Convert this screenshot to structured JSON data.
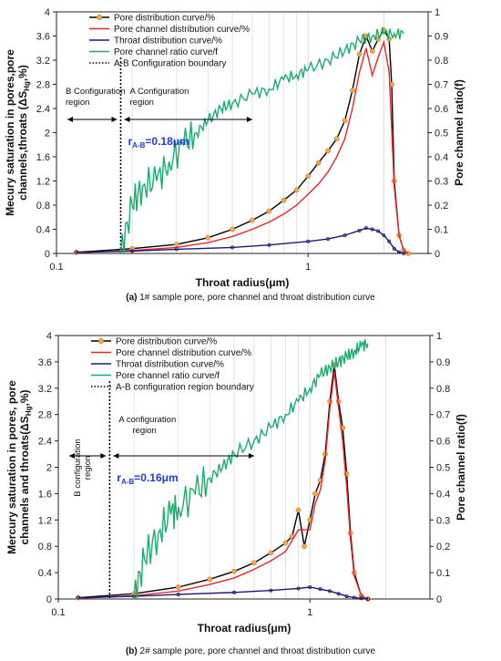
{
  "chart_data": [
    {
      "type": "line",
      "caption_label": "(a)",
      "caption": "1# sample pore, pore channel and throat distribution curve",
      "xlabel": "Throat radius(μm)",
      "ylabel_lines": [
        "Mecury saturation in pores,pore",
        "channels,throats (ΔS",
        "Hg",
        ",%)"
      ],
      "y2label": "Pore channel ratio(f)",
      "xscale": "log",
      "xlim": [
        0.1,
        3.0
      ],
      "ylim": [
        0,
        4
      ],
      "y2lim": [
        0,
        1
      ],
      "x_ticks": [
        "0.1",
        "1"
      ],
      "y_ticks": [
        "0",
        "0.4",
        "0.8",
        "1.2",
        "1.6",
        "2",
        "2.4",
        "2.8",
        "3.2",
        "3.6",
        "4"
      ],
      "y2_ticks": [
        "0",
        "0.1",
        "0.2",
        "0.3",
        "0.4",
        "0.5",
        "0.6",
        "0.7",
        "0.8",
        "0.9",
        "1"
      ],
      "boundary_x": 0.18,
      "r_label_main": "r",
      "r_label_sub": "A-B",
      "r_label_value": "=0.18μm",
      "region_b": [
        "B Configuration",
        "region"
      ],
      "region_a": [
        "A Configuration",
        "region"
      ],
      "legend": [
        {
          "label": "Pore distribution curve/%",
          "color": "#000000",
          "marker": "orange-dot"
        },
        {
          "label": "Pore channel distribution curve/%",
          "color": "#e8262a",
          "marker": "none"
        },
        {
          "label": "Throat distribution curve/%",
          "color": "#1a1a7a",
          "marker": "none"
        },
        {
          "label": "Pore channel ratio curve/f",
          "color": "#1aae6a",
          "marker": "none"
        },
        {
          "label": "A-B Configuration boundary",
          "color": "#000000",
          "marker": "dotted"
        }
      ],
      "series": [
        {
          "name": "Pore distribution curve/%",
          "axis": "left",
          "color": "#000000",
          "marker_color": "#f5a742",
          "x": [
            0.12,
            0.2,
            0.3,
            0.4,
            0.5,
            0.6,
            0.7,
            0.8,
            0.9,
            1.0,
            1.1,
            1.2,
            1.3,
            1.4,
            1.5,
            1.6,
            1.7,
            1.8,
            1.9,
            2.0,
            2.1,
            2.15,
            2.2,
            2.3,
            2.4,
            2.5
          ],
          "y": [
            0.02,
            0.08,
            0.15,
            0.26,
            0.4,
            0.55,
            0.7,
            0.88,
            1.05,
            1.28,
            1.5,
            1.7,
            1.9,
            2.2,
            2.7,
            3.3,
            3.6,
            3.35,
            3.55,
            3.7,
            3.55,
            2.8,
            1.2,
            0.3,
            0.05,
            0.0
          ]
        },
        {
          "name": "Pore channel distribution curve/%",
          "axis": "left",
          "color": "#e8262a",
          "x": [
            0.12,
            0.2,
            0.3,
            0.4,
            0.5,
            0.6,
            0.7,
            0.8,
            0.9,
            1.0,
            1.1,
            1.2,
            1.3,
            1.4,
            1.5,
            1.6,
            1.7,
            1.8,
            1.9,
            2.0,
            2.1,
            2.2,
            2.3,
            2.4,
            2.5
          ],
          "y": [
            0.01,
            0.05,
            0.1,
            0.18,
            0.28,
            0.4,
            0.52,
            0.65,
            0.8,
            0.98,
            1.15,
            1.35,
            1.6,
            1.9,
            2.4,
            3.0,
            3.4,
            2.95,
            3.25,
            3.5,
            3.0,
            1.1,
            0.3,
            0.05,
            0.0
          ]
        },
        {
          "name": "Throat distribution curve/%",
          "axis": "left",
          "color": "#1a1a7a",
          "x": [
            0.12,
            0.2,
            0.3,
            0.5,
            0.7,
            1.0,
            1.2,
            1.4,
            1.6,
            1.7,
            1.8,
            1.9,
            2.0,
            2.1,
            2.2,
            2.3,
            2.4
          ],
          "y": [
            0.02,
            0.04,
            0.07,
            0.1,
            0.14,
            0.2,
            0.24,
            0.3,
            0.38,
            0.42,
            0.4,
            0.37,
            0.3,
            0.2,
            0.08,
            0.02,
            0.0
          ]
        },
        {
          "name": "Pore channel ratio curve/f",
          "axis": "right",
          "color": "#1aae6a",
          "x": [
            0.18,
            0.2,
            0.22,
            0.25,
            0.28,
            0.32,
            0.36,
            0.4,
            0.45,
            0.5,
            0.6,
            0.7,
            0.8,
            0.9,
            1.0,
            1.2,
            1.4,
            1.6,
            1.8,
            2.0,
            2.2,
            2.4
          ],
          "y": [
            0.0,
            0.2,
            0.28,
            0.3,
            0.38,
            0.45,
            0.5,
            0.55,
            0.6,
            0.62,
            0.66,
            0.68,
            0.72,
            0.74,
            0.76,
            0.8,
            0.84,
            0.88,
            0.9,
            0.91,
            0.91,
            0.91
          ]
        }
      ]
    },
    {
      "type": "line",
      "caption_label": "(b)",
      "caption": "2# sample pore, pore channel and throat distribution curve",
      "xlabel": "Throat radius(μm)",
      "ylabel_lines": [
        "Mercury saturation in pores, pore",
        "channels and throats(ΔS",
        "Hg",
        ",%)"
      ],
      "y2label": "Pore channel ratio(f)",
      "xscale": "log",
      "xlim": [
        0.1,
        3.0
      ],
      "ylim": [
        0,
        4
      ],
      "y2lim": [
        0,
        1
      ],
      "x_ticks": [
        "0.1",
        "1"
      ],
      "y_ticks": [
        "0",
        "0.4",
        "0.8",
        "1.2",
        "1.6",
        "2",
        "2.4",
        "2.8",
        "3.2",
        "3.6",
        "4"
      ],
      "y2_ticks": [
        "0",
        "0.1",
        "0.2",
        "0.3",
        "0.4",
        "0.5",
        "0.6",
        "0.7",
        "0.8",
        "0.9",
        "1"
      ],
      "boundary_x": 0.16,
      "r_label_main": "r",
      "r_label_sub": "A-B",
      "r_label_value": "=0.16μm",
      "region_b": [
        "B configuration",
        "region"
      ],
      "region_a": [
        "A configuration",
        "region"
      ],
      "legend": [
        {
          "label": "Pore distribution curve/%",
          "color": "#000000",
          "marker": "orange-dot"
        },
        {
          "label": "Pore channel distribution curve/%",
          "color": "#e8262a",
          "marker": "none"
        },
        {
          "label": "Throat distribution curve/%",
          "color": "#1a1a7a",
          "marker": "none"
        },
        {
          "label": "Pore channel ratio curve/f",
          "color": "#1aae6a",
          "marker": "none"
        },
        {
          "label": "A-B configuration region boundary",
          "color": "#000000",
          "marker": "dotted"
        }
      ],
      "series": [
        {
          "name": "Pore distribution curve/%",
          "axis": "left",
          "color": "#000000",
          "marker_color": "#f5a742",
          "x": [
            0.12,
            0.2,
            0.3,
            0.4,
            0.5,
            0.6,
            0.7,
            0.8,
            0.85,
            0.9,
            0.95,
            1.0,
            1.05,
            1.1,
            1.15,
            1.2,
            1.25,
            1.3,
            1.35,
            1.4,
            1.45,
            1.5,
            1.6,
            1.7
          ],
          "y": [
            0.02,
            0.08,
            0.18,
            0.3,
            0.42,
            0.55,
            0.7,
            0.85,
            0.95,
            1.35,
            0.8,
            1.2,
            1.6,
            1.8,
            2.2,
            3.0,
            3.55,
            3.0,
            2.6,
            1.9,
            1.0,
            0.4,
            0.05,
            0.0
          ]
        },
        {
          "name": "Pore channel distribution curve/%",
          "axis": "left",
          "color": "#e8262a",
          "x": [
            0.12,
            0.2,
            0.3,
            0.4,
            0.5,
            0.6,
            0.7,
            0.8,
            0.9,
            1.0,
            1.05,
            1.1,
            1.15,
            1.2,
            1.25,
            1.3,
            1.35,
            1.4,
            1.45,
            1.5,
            1.6,
            1.7
          ],
          "y": [
            0.01,
            0.05,
            0.12,
            0.22,
            0.32,
            0.45,
            0.58,
            0.72,
            1.05,
            1.05,
            1.45,
            1.65,
            2.1,
            2.9,
            3.45,
            2.9,
            2.4,
            1.7,
            0.9,
            0.35,
            0.05,
            0.0
          ]
        },
        {
          "name": "Throat distribution curve/%",
          "axis": "left",
          "color": "#1a1a7a",
          "x": [
            0.12,
            0.2,
            0.3,
            0.5,
            0.7,
            0.9,
            1.0,
            1.1,
            1.2,
            1.3,
            1.4,
            1.5,
            1.6,
            1.7
          ],
          "y": [
            0.02,
            0.04,
            0.07,
            0.1,
            0.13,
            0.16,
            0.18,
            0.15,
            0.12,
            0.08,
            0.04,
            0.02,
            0.01,
            0.0
          ]
        },
        {
          "name": "Pore channel ratio curve/f",
          "axis": "right",
          "color": "#1aae6a",
          "x": [
            0.2,
            0.22,
            0.25,
            0.28,
            0.3,
            0.35,
            0.4,
            0.45,
            0.5,
            0.6,
            0.7,
            0.8,
            0.9,
            1.0,
            1.1,
            1.2,
            1.3,
            1.4,
            1.5,
            1.6,
            1.7
          ],
          "y": [
            0.0,
            0.15,
            0.25,
            0.32,
            0.35,
            0.4,
            0.46,
            0.5,
            0.55,
            0.6,
            0.65,
            0.7,
            0.75,
            0.8,
            0.85,
            0.88,
            0.9,
            0.92,
            0.94,
            0.96,
            0.97
          ]
        }
      ]
    }
  ]
}
